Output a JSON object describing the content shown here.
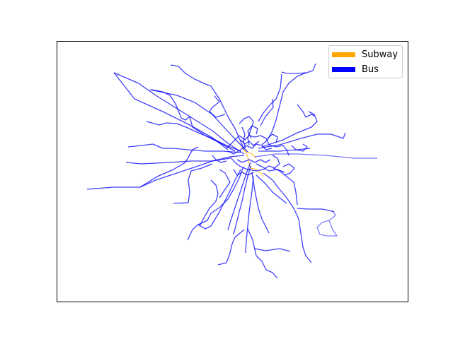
{
  "colors": {
    "subway": "#FFA500",
    "bus": "#0000FF",
    "frame": "#000000",
    "background": "#FFFFFF"
  },
  "legend": {
    "placement": "upper-right",
    "items": [
      {
        "label": "Subway",
        "color": "#FFA500"
      },
      {
        "label": "Bus",
        "color": "#0000FF"
      }
    ]
  },
  "axes": {
    "ticks": false,
    "grid": false
  }
}
